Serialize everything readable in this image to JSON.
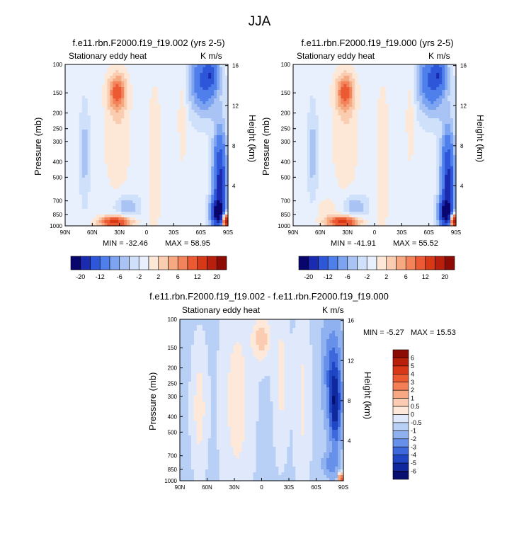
{
  "figure_title": "JJA",
  "colorbar_levels_full": [
    "-20",
    "-12",
    "-6",
    "-2",
    "2",
    "6",
    "12",
    "20"
  ],
  "colorbar_levels_diff": [
    "6",
    "5",
    "4",
    "3",
    "2",
    "1",
    "0.5",
    "0",
    "-0.5",
    "-1",
    "-2",
    "-3",
    "-4",
    "-5",
    "-6"
  ],
  "colorbar_colors_full": [
    "#08066e",
    "#1a2bb0",
    "#2e56d8",
    "#4f7fea",
    "#7da4f0",
    "#a9c3f5",
    "#cfe0fa",
    "#e8f0fd",
    "#fde8d8",
    "#fbcdb0",
    "#f6a981",
    "#f2835a",
    "#ec5a33",
    "#d73816",
    "#b81f0d",
    "#8c0b05"
  ],
  "colorbar_colors_diff": [
    "#8c0b05",
    "#b8200c",
    "#d93818",
    "#ec5a33",
    "#f47f56",
    "#f8a882",
    "#fbccb1",
    "#fde8d9",
    "#dfe9fb",
    "#b8cff6",
    "#8fb1f0",
    "#6690ea",
    "#3c68dc",
    "#1f45c4",
    "#10289e",
    "#08106f"
  ],
  "chart_data": [
    {
      "type": "heatmap",
      "title": "f.e11.rbn.F2000.f19_f19.002 (yrs 2-5)",
      "subtitle": "Stationary eddy heat",
      "units": "K m/s",
      "xlabel": "",
      "ylabel": "Pressure (mb)",
      "ylabel_right": "Height (km)",
      "x_ticks": [
        "90N",
        "60N",
        "30N",
        "0",
        "30S",
        "60S",
        "90S"
      ],
      "y_ticks": [
        "100",
        "150",
        "200",
        "250",
        "300",
        "400",
        "500",
        "700",
        "850",
        "1000"
      ],
      "y_ticks_right": [
        "16",
        "12",
        "8",
        "4"
      ],
      "y_scale": "log",
      "min_label": "MIN = -32.46",
      "max_label": "MAX =  58.95",
      "min": -32.46,
      "max": 58.95
    },
    {
      "type": "heatmap",
      "title": "f.e11.rbn.F2000.f19_f19.000 (yrs 2-5)",
      "subtitle": "Stationary eddy heat",
      "units": "K m/s",
      "xlabel": "",
      "ylabel": "Pressure (mb)",
      "ylabel_right": "Height (km)",
      "x_ticks": [
        "90N",
        "60N",
        "30N",
        "0",
        "30S",
        "60S",
        "90S"
      ],
      "y_ticks": [
        "100",
        "150",
        "200",
        "250",
        "300",
        "400",
        "500",
        "700",
        "850",
        "1000"
      ],
      "y_ticks_right": [
        "16",
        "12",
        "8",
        "4"
      ],
      "y_scale": "log",
      "min_label": "MIN = -41.91",
      "max_label": "MAX =  55.52",
      "min": -41.91,
      "max": 55.52
    },
    {
      "type": "heatmap",
      "title": "f.e11.rbn.F2000.f19_f19.002 - f.e11.rbn.F2000.f19_f19.000",
      "subtitle": "Stationary eddy heat",
      "units": "K m/s",
      "xlabel": "",
      "ylabel": "Pressure (mb)",
      "ylabel_right": "Height (km)",
      "x_ticks": [
        "90N",
        "60N",
        "30N",
        "0",
        "30S",
        "60S",
        "90S"
      ],
      "y_ticks": [
        "100",
        "150",
        "200",
        "250",
        "300",
        "400",
        "500",
        "700",
        "850",
        "1000"
      ],
      "y_ticks_right": [
        "16",
        "12",
        "8",
        "4"
      ],
      "y_scale": "log",
      "min_label": "MIN =  -5.27",
      "max_label": "MAX =  15.53",
      "min": -5.27,
      "max": 15.53
    }
  ]
}
